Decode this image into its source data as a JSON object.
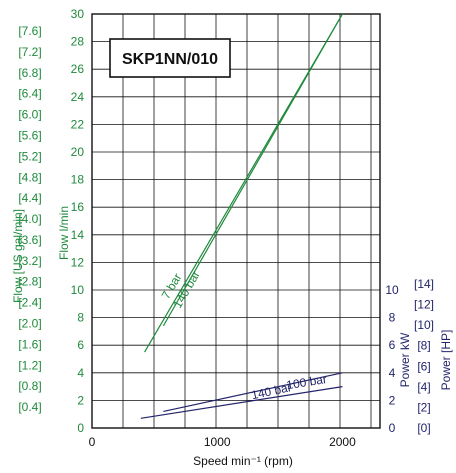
{
  "chart_data": {
    "type": "line",
    "title": "SKP1NN/010",
    "xlabel": "Speed min⁻¹ (rpm)",
    "ylabel_flow_lmin": "Flow  l/min",
    "ylabel_flow_usgal": "Flow  [US gal/min]",
    "ylabel_power_kw": "Power  kW",
    "ylabel_power_hp": "Power [HP]",
    "xlim": [
      0,
      2300
    ],
    "ylim_flow": [
      0,
      30
    ],
    "ylim_power_kw": [
      0,
      10
    ],
    "grid": true,
    "x_ticks": [
      "0",
      "1000",
      "2000"
    ],
    "flow_lmin_ticks": [
      "0",
      "2",
      "4",
      "6",
      "8",
      "10",
      "12",
      "14",
      "16",
      "18",
      "20",
      "22",
      "24",
      "26",
      "28",
      "30"
    ],
    "flow_usgal_ticks": [
      "[0.4]",
      "[0.8]",
      "[1.2]",
      "[1.6]",
      "[2.0]",
      "[2.4]",
      "[2.8]",
      "[3.2]",
      "[3.6]",
      "[4.0]",
      "[4.4]",
      "[4.8]",
      "[5.2]",
      "[5.6]",
      "[6.0]",
      "[6.4]",
      "[6.8]",
      "[7.2]",
      "[7.6]"
    ],
    "power_kw_ticks": [
      "0",
      "2",
      "4",
      "6",
      "8",
      "10"
    ],
    "power_hp_ticks": [
      "[0]",
      "[2]",
      "[4]",
      "[6]",
      "[8]",
      "[10]",
      "[12]",
      "[14]"
    ],
    "flow_series": [
      {
        "name": "7 bar",
        "x": [
          420,
          2000
        ],
        "y": [
          5.5,
          30
        ]
      },
      {
        "name": "140 bar",
        "x": [
          570,
          2000
        ],
        "y": [
          7.4,
          30
        ]
      }
    ],
    "power_series": [
      {
        "name": "140 bar",
        "x": [
          570,
          2000
        ],
        "y": [
          1.2,
          4.0
        ]
      },
      {
        "name": "100 bar",
        "x": [
          390,
          2000
        ],
        "y": [
          0.7,
          3.0
        ]
      }
    ],
    "colors": {
      "flow": "#1f8a3c",
      "power": "#23256b",
      "grid": "#111111"
    }
  }
}
